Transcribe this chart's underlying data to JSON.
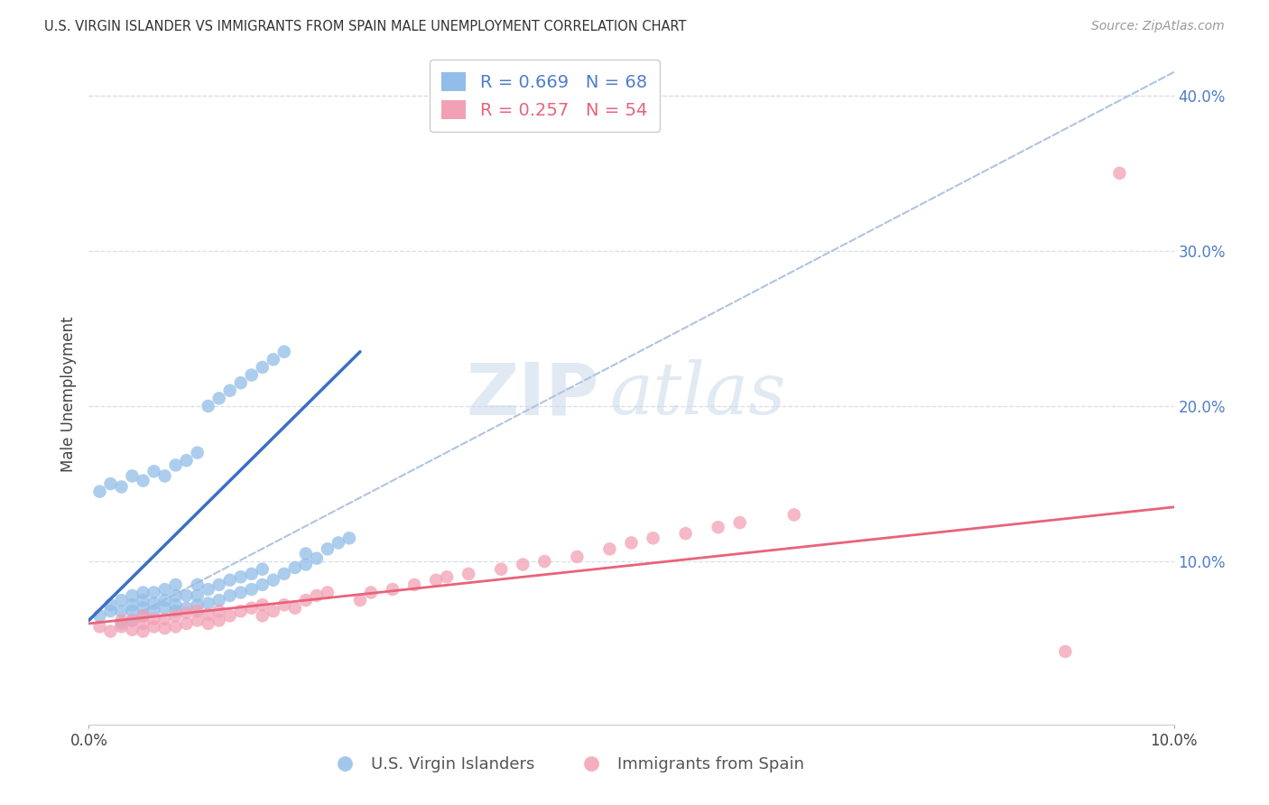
{
  "title": "U.S. VIRGIN ISLANDER VS IMMIGRANTS FROM SPAIN MALE UNEMPLOYMENT CORRELATION CHART",
  "source": "Source: ZipAtlas.com",
  "ylabel": "Male Unemployment",
  "right_yticks": [
    0.0,
    0.1,
    0.2,
    0.3,
    0.4
  ],
  "right_yticklabels": [
    "",
    "10.0%",
    "20.0%",
    "30.0%",
    "40.0%"
  ],
  "xlim": [
    0.0,
    0.1
  ],
  "ylim": [
    -0.005,
    0.42
  ],
  "blue_color": "#92BDE8",
  "pink_color": "#F2A0B5",
  "blue_line_color": "#3B6FC4",
  "pink_line_color": "#E8637A",
  "dashed_line_color": "#B0C4DE",
  "right_axis_color": "#4F7DC8",
  "grid_color": "#D8DFE8",
  "legend_r1": "R = 0.669",
  "legend_n1": "N = 68",
  "legend_r2": "R = 0.257",
  "legend_n2": "N = 54",
  "legend_label1": "U.S. Virgin Islanders",
  "legend_label2": "Immigrants from Spain",
  "watermark_zip": "ZIP",
  "watermark_atlas": "atlas",
  "blue_scatter_x": [
    0.001,
    0.002,
    0.002,
    0.003,
    0.003,
    0.003,
    0.004,
    0.004,
    0.004,
    0.004,
    0.005,
    0.005,
    0.005,
    0.005,
    0.006,
    0.006,
    0.006,
    0.007,
    0.007,
    0.007,
    0.008,
    0.008,
    0.008,
    0.008,
    0.009,
    0.009,
    0.01,
    0.01,
    0.01,
    0.011,
    0.011,
    0.012,
    0.012,
    0.013,
    0.013,
    0.014,
    0.014,
    0.015,
    0.015,
    0.016,
    0.016,
    0.017,
    0.018,
    0.019,
    0.02,
    0.02,
    0.021,
    0.022,
    0.023,
    0.024,
    0.001,
    0.002,
    0.003,
    0.004,
    0.005,
    0.006,
    0.007,
    0.008,
    0.009,
    0.01,
    0.011,
    0.012,
    0.013,
    0.014,
    0.015,
    0.016,
    0.017,
    0.018
  ],
  "blue_scatter_y": [
    0.065,
    0.068,
    0.072,
    0.06,
    0.068,
    0.075,
    0.062,
    0.068,
    0.072,
    0.078,
    0.065,
    0.07,
    0.075,
    0.08,
    0.068,
    0.073,
    0.08,
    0.07,
    0.075,
    0.082,
    0.068,
    0.072,
    0.078,
    0.085,
    0.07,
    0.078,
    0.072,
    0.078,
    0.085,
    0.073,
    0.082,
    0.075,
    0.085,
    0.078,
    0.088,
    0.08,
    0.09,
    0.082,
    0.092,
    0.085,
    0.095,
    0.088,
    0.092,
    0.096,
    0.098,
    0.105,
    0.102,
    0.108,
    0.112,
    0.115,
    0.145,
    0.15,
    0.148,
    0.155,
    0.152,
    0.158,
    0.155,
    0.162,
    0.165,
    0.17,
    0.2,
    0.205,
    0.21,
    0.215,
    0.22,
    0.225,
    0.23,
    0.235
  ],
  "pink_scatter_x": [
    0.001,
    0.002,
    0.003,
    0.003,
    0.004,
    0.004,
    0.005,
    0.005,
    0.005,
    0.006,
    0.006,
    0.007,
    0.007,
    0.008,
    0.008,
    0.009,
    0.009,
    0.01,
    0.01,
    0.011,
    0.011,
    0.012,
    0.012,
    0.013,
    0.014,
    0.015,
    0.016,
    0.016,
    0.017,
    0.018,
    0.019,
    0.02,
    0.021,
    0.022,
    0.025,
    0.026,
    0.028,
    0.03,
    0.032,
    0.033,
    0.035,
    0.038,
    0.04,
    0.042,
    0.045,
    0.048,
    0.05,
    0.052,
    0.055,
    0.058,
    0.06,
    0.065,
    0.09,
    0.095
  ],
  "pink_scatter_y": [
    0.058,
    0.055,
    0.058,
    0.062,
    0.056,
    0.062,
    0.055,
    0.06,
    0.065,
    0.058,
    0.063,
    0.057,
    0.063,
    0.058,
    0.065,
    0.06,
    0.067,
    0.062,
    0.068,
    0.06,
    0.066,
    0.062,
    0.068,
    0.065,
    0.068,
    0.07,
    0.065,
    0.072,
    0.068,
    0.072,
    0.07,
    0.075,
    0.078,
    0.08,
    0.075,
    0.08,
    0.082,
    0.085,
    0.088,
    0.09,
    0.092,
    0.095,
    0.098,
    0.1,
    0.103,
    0.108,
    0.112,
    0.115,
    0.118,
    0.122,
    0.125,
    0.13,
    0.042,
    0.35
  ],
  "blue_trendline_x": [
    0.0,
    0.025
  ],
  "blue_trendline_y": [
    0.062,
    0.235
  ],
  "dashed_trendline_x": [
    0.005,
    0.1
  ],
  "dashed_trendline_y": [
    0.068,
    0.415
  ],
  "pink_trendline_x": [
    0.0,
    0.1
  ],
  "pink_trendline_y": [
    0.06,
    0.135
  ]
}
